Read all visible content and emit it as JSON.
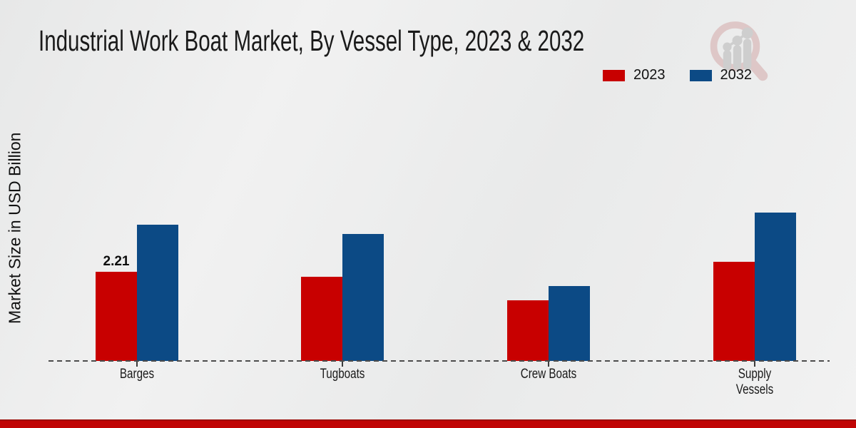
{
  "title": "Industrial Work Boat Market, By Vessel Type, 2023 & 2032",
  "y_axis_label": "Market Size in USD Billion",
  "legend": {
    "items": [
      {
        "label": "2023",
        "color": "#c80000"
      },
      {
        "label": "2032",
        "color": "#0c4a85"
      }
    ]
  },
  "footer": {
    "bar_color": "#c00404"
  },
  "logo": {
    "name": "magnifier-growth-chart-logo",
    "ring_color": "#dec6c6",
    "bars_color": "#cdcdcd"
  },
  "chart_data": {
    "type": "bar",
    "title": "Industrial Work Boat Market, By Vessel Type, 2023 & 2032",
    "ylabel": "Market Size in USD Billion",
    "xlabel": "",
    "unit": "USD Billion",
    "categories": [
      "Barges",
      "Tugboats",
      "Crew Boats",
      "Supply Vessels"
    ],
    "category_display": [
      "Barges",
      "Tugboats",
      "Crew Boats",
      "Supply\nVessels"
    ],
    "series": [
      {
        "name": "2023",
        "color": "#c80000",
        "values": [
          2.21,
          2.09,
          1.5,
          2.46
        ],
        "data_labels": [
          "2.21",
          "",
          "",
          ""
        ]
      },
      {
        "name": "2032",
        "color": "#0c4a85",
        "values": [
          3.38,
          3.15,
          1.86,
          3.68
        ],
        "data_labels": [
          "",
          "",
          "",
          ""
        ]
      }
    ],
    "ylim": [
      0,
      4.2
    ],
    "grid": false,
    "legend_position": "top-right",
    "x_axis_style": "dashed-baseline-with-ticks"
  }
}
